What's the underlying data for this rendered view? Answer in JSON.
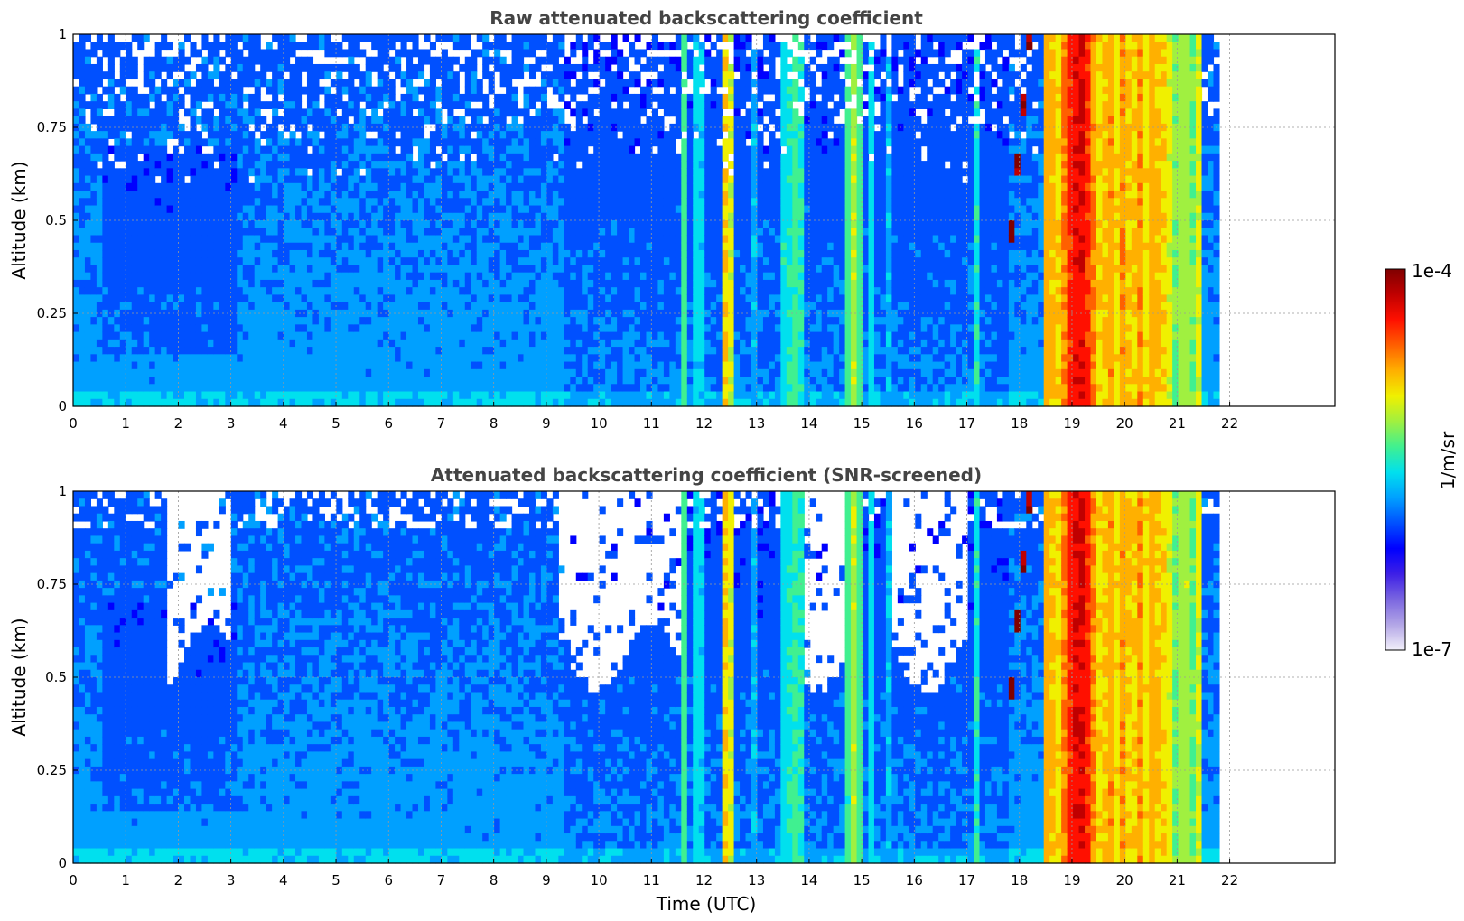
{
  "colormap": [
    "#f2f0fa",
    "#b3a6e6",
    "#7a66e0",
    "#3d1fe6",
    "#0000ff",
    "#0050ff",
    "#00a0ff",
    "#00e0ee",
    "#40f090",
    "#a0f040",
    "#f0f000",
    "#ffb000",
    "#ff6000",
    "#ff1000",
    "#c00000",
    "#800000"
  ],
  "chart_data": [
    {
      "type": "heatmap",
      "title": "Raw attenuated backscattering coefficient",
      "xlabel": "",
      "ylabel": "Altitude (km)",
      "xlim": [
        0,
        24
      ],
      "ylim": [
        0,
        1
      ],
      "x_ticks": [
        "0",
        "1",
        "2",
        "3",
        "4",
        "5",
        "6",
        "7",
        "8",
        "9",
        "10",
        "11",
        "12",
        "13",
        "14",
        "15",
        "16",
        "17",
        "18",
        "19",
        "20",
        "21",
        "22"
      ],
      "y_ticks": [
        "0",
        "0.25",
        "0.5",
        "0.75",
        "1"
      ],
      "grid": true,
      "data_end_x": 21.8
    },
    {
      "type": "heatmap",
      "title": "Attenuated backscattering coefficient (SNR-screened)",
      "xlabel": "Time (UTC)",
      "ylabel": "Altitude (km)",
      "xlim": [
        0,
        24
      ],
      "ylim": [
        0,
        1
      ],
      "x_ticks": [
        "0",
        "1",
        "2",
        "3",
        "4",
        "5",
        "6",
        "7",
        "8",
        "9",
        "10",
        "11",
        "12",
        "13",
        "14",
        "15",
        "16",
        "17",
        "18",
        "19",
        "20",
        "21",
        "22"
      ],
      "y_ticks": [
        "0",
        "0.25",
        "0.5",
        "0.75",
        "1"
      ],
      "grid": true,
      "data_end_x": 21.8
    }
  ],
  "colorbar": {
    "label": "1/m/sr",
    "max_label": "1e-4",
    "min_label": "1e-7",
    "scale": "log",
    "range": [
      1e-07,
      0.0001
    ]
  }
}
